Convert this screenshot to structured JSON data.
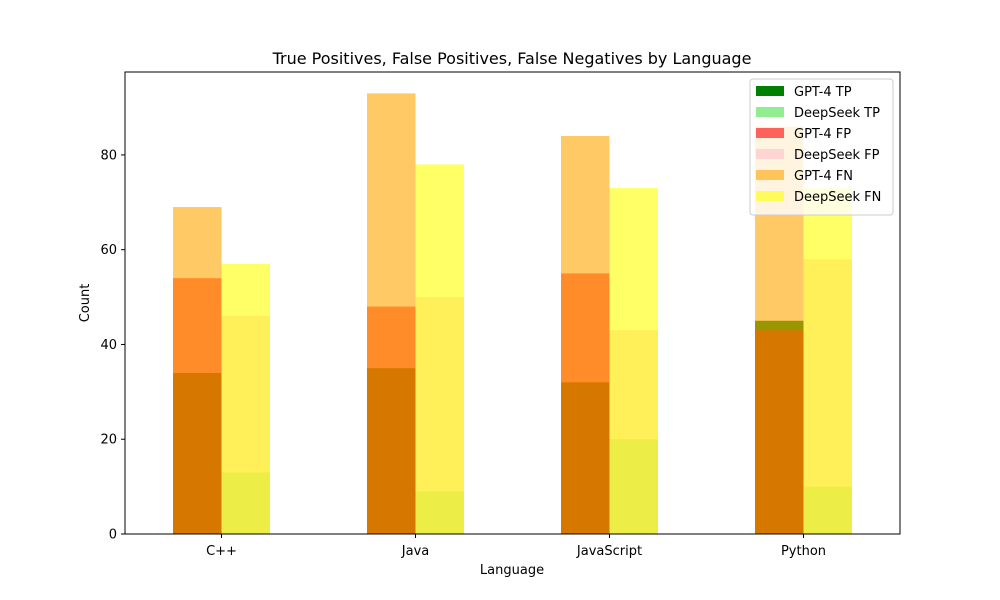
{
  "chart_data": {
    "type": "bar",
    "title": "True Positives, False Positives, False Negatives by Language",
    "xlabel": "Language",
    "ylabel": "Count",
    "categories": [
      "C++",
      "Java",
      "JavaScript",
      "Python"
    ],
    "ylim": [
      0,
      97.5
    ],
    "yticks": [
      0,
      20,
      40,
      60,
      80
    ],
    "grid": false,
    "legend_position": "top-right",
    "series": [
      {
        "name": "GPT-4 TP",
        "model": "GPT-4",
        "metric": "TP",
        "color": "#008000",
        "opacity": 1.0,
        "values": [
          34,
          35,
          32,
          45
        ]
      },
      {
        "name": "DeepSeek TP",
        "model": "DeepSeek",
        "metric": "TP",
        "color": "#90EE90",
        "opacity": 1.0,
        "values": [
          13,
          9,
          20,
          10
        ]
      },
      {
        "name": "GPT-4 FP",
        "model": "GPT-4",
        "metric": "FP",
        "color": "#FF0000",
        "opacity": 0.6,
        "values": [
          54,
          48,
          55,
          43
        ]
      },
      {
        "name": "DeepSeek FP",
        "model": "DeepSeek",
        "metric": "FP",
        "color": "#FFC0CB",
        "opacity": 0.6,
        "values": [
          46,
          50,
          43,
          58
        ]
      },
      {
        "name": "GPT-4 FN",
        "model": "GPT-4",
        "metric": "FN",
        "color": "#FFA500",
        "opacity": 0.6,
        "values": [
          69,
          93,
          84,
          86
        ]
      },
      {
        "name": "DeepSeek FN",
        "model": "DeepSeek",
        "metric": "FN",
        "color": "#FFFF00",
        "opacity": 0.6,
        "values": [
          57,
          78,
          73,
          73
        ]
      }
    ]
  }
}
